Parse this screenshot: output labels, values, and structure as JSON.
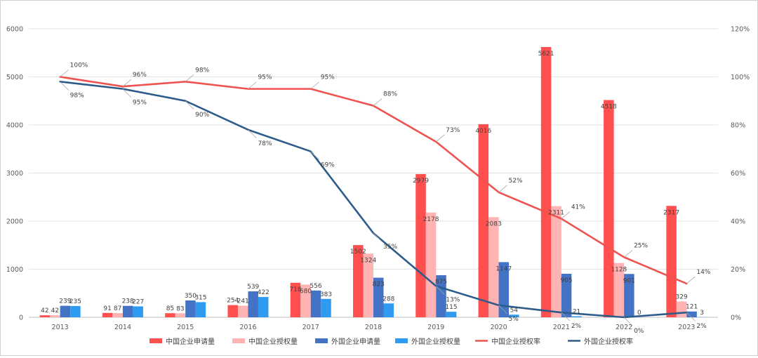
{
  "chart_data": {
    "type": "bar",
    "categories": [
      "2013",
      "2014",
      "2015",
      "2016",
      "2017",
      "2018",
      "2019",
      "2020",
      "2021",
      "2022",
      "2023"
    ],
    "series": [
      {
        "name": "中国企业申请量",
        "kind": "bar",
        "axis": "left",
        "color": "#ff4f4f",
        "values": [
          42,
          91,
          85,
          254,
          718,
          1502,
          2979,
          4016,
          5621,
          4518,
          2317
        ]
      },
      {
        "name": "中国企业授权量",
        "kind": "bar",
        "axis": "left",
        "color": "#ffb3b3",
        "values": [
          42,
          87,
          83,
          241,
          680,
          1324,
          2178,
          2083,
          2311,
          1128,
          329
        ]
      },
      {
        "name": "外国企业申请量",
        "kind": "bar",
        "axis": "left",
        "color": "#4472c4",
        "values": [
          239,
          238,
          350,
          539,
          556,
          823,
          875,
          1147,
          905,
          901,
          121
        ]
      },
      {
        "name": "外国企业授权量",
        "kind": "bar",
        "axis": "left",
        "color": "#2f9bf0",
        "values": [
          235,
          227,
          315,
          422,
          383,
          288,
          115,
          54,
          21,
          0,
          3
        ]
      },
      {
        "name": "中国企业授权率",
        "kind": "line",
        "axis": "right",
        "color": "#ef5350",
        "values": [
          100,
          96,
          98,
          95,
          95,
          88,
          73,
          52,
          41,
          25,
          14
        ]
      },
      {
        "name": "外国企业授权率",
        "kind": "line",
        "axis": "right",
        "color": "#2e5c8a",
        "values": [
          98,
          95,
          90,
          78,
          69,
          35,
          13,
          5,
          2,
          0,
          2
        ]
      }
    ],
    "ylim": [
      0,
      6000
    ],
    "yticks": [
      "0",
      "1000",
      "2000",
      "3000",
      "4000",
      "5000",
      "6000"
    ],
    "y2lim": [
      0,
      120
    ],
    "y2ticks": [
      "0%",
      "20%",
      "40%",
      "60%",
      "80%",
      "100%",
      "120%"
    ],
    "title": "",
    "xlabel": "",
    "ylabel": "",
    "grid": "horizontal",
    "legend_position": "bottom"
  }
}
